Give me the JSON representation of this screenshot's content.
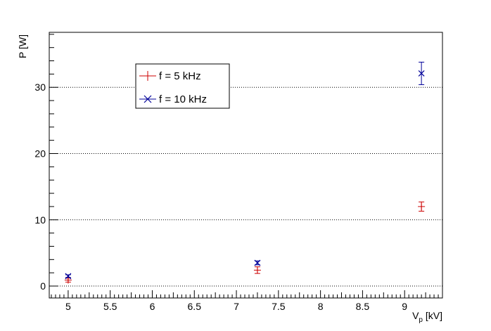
{
  "chart_data": {
    "type": "scatter",
    "xlabel": "V",
    "xlabel_sub": "p",
    "xlabel_unit": " [kV]",
    "ylabel": "P [W]",
    "xlim": [
      4.775,
      9.45
    ],
    "ylim": [
      -1.8,
      38.3
    ],
    "xticks": [
      5,
      5.5,
      6,
      6.5,
      7,
      7.5,
      8,
      8.5,
      9
    ],
    "xtick_labels": [
      "5",
      "5.5",
      "6",
      "6.5",
      "7",
      "7.5",
      "8",
      "8.5",
      "9"
    ],
    "yticks": [
      0,
      10,
      20,
      30
    ],
    "ytick_labels": [
      "0",
      "10",
      "20",
      "30"
    ],
    "grid": "horizontal dotted",
    "legend_position": "upper-left",
    "series": [
      {
        "name": "f = 5 kHz",
        "color": "#cc0000",
        "marker": "plus",
        "points": [
          {
            "x": 5.0,
            "y": 0.9,
            "err": 0.3
          },
          {
            "x": 7.25,
            "y": 2.4,
            "err": 0.5
          },
          {
            "x": 9.2,
            "y": 12.0,
            "err": 0.7
          }
        ]
      },
      {
        "name": "f = 10 kHz",
        "color": "#000099",
        "marker": "cross",
        "points": [
          {
            "x": 5.0,
            "y": 1.5,
            "err": 0.2
          },
          {
            "x": 7.25,
            "y": 3.5,
            "err": 0.3
          },
          {
            "x": 9.2,
            "y": 32.1,
            "err": 1.7
          }
        ]
      }
    ]
  }
}
